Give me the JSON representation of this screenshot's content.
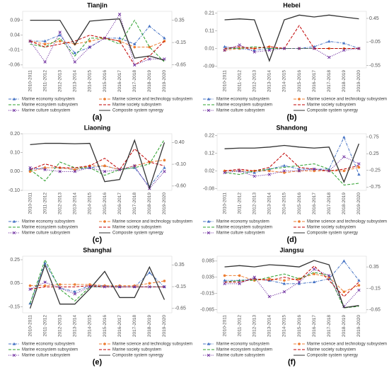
{
  "chart_data": [
    {
      "type": "line",
      "title": "Tianjin",
      "label": "(a)",
      "categories": [
        "2010-2011",
        "2011-2012",
        "2012-2013",
        "2013-2014",
        "2014-2015",
        "2015-2016",
        "2016-2017",
        "2017-2018",
        "2018-2019",
        "2019-2020"
      ],
      "ylim": [
        -0.07,
        0.12
      ],
      "yticks": [
        -0.06,
        -0.01,
        0.04,
        0.09
      ],
      "y2lim": [
        -0.72,
        0.55
      ],
      "y2ticks": [
        -0.65,
        -0.15,
        0.35
      ],
      "series": [
        {
          "name": "Marine economy subsystem",
          "color": "#4472c4",
          "dash": "dashdot",
          "marker": "triangle",
          "values": [
            0.02,
            0.02,
            0.04,
            -0.02,
            0.0,
            0.03,
            0.03,
            0.01,
            0.07,
            0.03
          ]
        },
        {
          "name": "Marine science and technology subsystem",
          "color": "#ed7d31",
          "dash": "dashed",
          "marker": "circle",
          "values": [
            0.02,
            0.01,
            0.02,
            0.01,
            0.02,
            0.03,
            0.02,
            0.0,
            0.0,
            0.02
          ]
        },
        {
          "name": "Marine ecosystem subsystem",
          "color": "#2ca02c",
          "dash": "dashed",
          "values": [
            0.01,
            0.0,
            0.03,
            -0.03,
            0.03,
            0.03,
            0.01,
            0.09,
            0.0,
            -0.05
          ]
        },
        {
          "name": "Marine society subsystem",
          "color": "#c00000",
          "dash": "dashed",
          "values": [
            0.02,
            0.0,
            0.01,
            0.02,
            0.04,
            0.03,
            0.02,
            -0.06,
            -0.03,
            0.02
          ]
        },
        {
          "name": "Marine culture subsystem",
          "color": "#7030a0",
          "dash": "dotted",
          "marker": "x",
          "values": [
            0.02,
            -0.05,
            0.05,
            -0.05,
            0.0,
            0.03,
            0.11,
            -0.06,
            -0.04,
            -0.04
          ]
        },
        {
          "name": "Composite system synergy",
          "color": "#333333",
          "dash": "solid",
          "axis": "y2",
          "values": [
            0.35,
            0.35,
            0.35,
            -0.2,
            0.33,
            0.36,
            0.38,
            -0.5,
            -0.45,
            -0.55
          ]
        }
      ]
    },
    {
      "type": "line",
      "title": "Hebei",
      "label": "(b)",
      "categories": [
        "2010-2011",
        "2011-2012",
        "2012-2013",
        "2013-2014",
        "2014-2015",
        "2015-2016",
        "2016-2017",
        "2017-2018",
        "2018-2019",
        "2019-2020"
      ],
      "ylim": [
        -0.1,
        0.22
      ],
      "yticks": [
        -0.09,
        0.01,
        0.11,
        0.21
      ],
      "y2lim": [
        -0.6,
        0.6
      ],
      "y2ticks": [
        -0.55,
        -0.05,
        0.45
      ],
      "series": [
        {
          "name": "Marine economy subsystem",
          "color": "#4472c4",
          "dash": "dashdot",
          "marker": "triangle",
          "values": [
            0.02,
            0.01,
            0.0,
            0.01,
            0.01,
            0.01,
            0.02,
            0.05,
            0.04,
            0.01
          ]
        },
        {
          "name": "Marine science and technology subsystem",
          "color": "#ed7d31",
          "dash": "dashed",
          "marker": "circle",
          "values": [
            0.0,
            0.01,
            0.01,
            0.02,
            0.01,
            0.01,
            0.01,
            0.01,
            0.01,
            0.01
          ]
        },
        {
          "name": "Marine ecosystem subsystem",
          "color": "#2ca02c",
          "dash": "dashed",
          "values": [
            0.01,
            0.01,
            0.02,
            0.01,
            0.01,
            0.01,
            0.01,
            0.01,
            0.01,
            0.01
          ]
        },
        {
          "name": "Marine society subsystem",
          "color": "#c00000",
          "dash": "dashed",
          "values": [
            0.01,
            0.02,
            0.01,
            0.02,
            0.01,
            0.14,
            0.01,
            0.01,
            0.01,
            0.01
          ]
        },
        {
          "name": "Marine culture subsystem",
          "color": "#7030a0",
          "dash": "dotted",
          "marker": "x",
          "values": [
            0.0,
            0.03,
            -0.01,
            0.0,
            0.01,
            0.01,
            0.01,
            -0.04,
            0.0,
            0.01
          ]
        },
        {
          "name": "Composite system synergy",
          "color": "#333333",
          "dash": "solid",
          "axis": "y2",
          "values": [
            0.42,
            0.44,
            0.42,
            -0.45,
            0.42,
            0.52,
            0.48,
            0.52,
            0.48,
            0.44
          ]
        }
      ]
    },
    {
      "type": "line",
      "title": "Liaoning",
      "label": "(c)",
      "categories": [
        "2010-2011",
        "2011-2012",
        "2012-2013",
        "2013-2014",
        "2014-2015",
        "2015-2016",
        "2016-2017",
        "2017-2018",
        "2018-2019",
        "2019-2020"
      ],
      "ylim": [
        -0.1,
        0.2
      ],
      "yticks": [
        {
          "value": -0.1,
          "label": "-0.10"
        },
        {
          "value": 0,
          "label": "0.00"
        },
        {
          "value": 0.1,
          "label": "0.10"
        },
        {
          "value": 0.2,
          "label": "0.20"
        }
      ],
      "y2lim": [
        -0.7,
        0.6
      ],
      "y2ticks": [
        {
          "value": -0.6,
          "label": "-0.60"
        },
        {
          "value": -0.1,
          "label": "-0.10"
        },
        {
          "value": 0.4,
          "label": "0.40"
        }
      ],
      "series": [
        {
          "name": "Marine economy subsystem",
          "color": "#4472c4",
          "dash": "dashdot",
          "marker": "triangle",
          "values": [
            0.01,
            0.02,
            0.02,
            0.01,
            0.02,
            0.03,
            0.01,
            0.02,
            -0.08,
            0.02
          ]
        },
        {
          "name": "Marine science and technology subsystem",
          "color": "#ed7d31",
          "dash": "dashed",
          "marker": "circle",
          "values": [
            0.0,
            0.02,
            0.02,
            0.01,
            0.03,
            0.03,
            0.01,
            0.03,
            0.05,
            0.06
          ]
        },
        {
          "name": "Marine ecosystem subsystem",
          "color": "#2ca02c",
          "dash": "dashed",
          "values": [
            0.01,
            -0.05,
            0.05,
            0.02,
            0.02,
            -0.02,
            0.01,
            0.02,
            0.04,
            0.17
          ]
        },
        {
          "name": "Marine society subsystem",
          "color": "#c00000",
          "dash": "dashed",
          "values": [
            0.01,
            0.04,
            0.02,
            0.02,
            0.03,
            0.07,
            0.01,
            0.12,
            0.05,
            0.03
          ]
        },
        {
          "name": "Marine culture subsystem",
          "color": "#7030a0",
          "dash": "dotted",
          "marker": "x",
          "values": [
            0.02,
            0.01,
            0.0,
            0.0,
            0.02,
            0.0,
            0.01,
            0.03,
            -0.09,
            0.0
          ]
        },
        {
          "name": "Composite system synergy",
          "color": "#333333",
          "dash": "solid",
          "axis": "y2",
          "values": [
            0.35,
            0.38,
            0.38,
            0.37,
            0.38,
            -0.5,
            -0.45,
            0.45,
            -0.65,
            0.4
          ]
        }
      ]
    },
    {
      "type": "line",
      "title": "Shandong",
      "label": "(d)",
      "categories": [
        "2010-2011",
        "2011-2012",
        "2012-2013",
        "2013-2014",
        "2014-2015",
        "2015-2016",
        "2016-2017",
        "2017-2018",
        "2018-2019",
        "2019-2020"
      ],
      "ylim": [
        -0.09,
        0.23
      ],
      "yticks": [
        -0.08,
        0.02,
        0.12,
        0.22
      ],
      "y2lim": [
        -0.85,
        0.85
      ],
      "y2ticks": [
        -0.75,
        -0.25,
        0.25,
        0.75
      ],
      "series": [
        {
          "name": "Marine economy subsystem",
          "color": "#4472c4",
          "dash": "dashdot",
          "marker": "triangle",
          "values": [
            0.02,
            0.02,
            0.01,
            0.03,
            0.05,
            0.03,
            0.03,
            0.03,
            0.21,
            0.0
          ]
        },
        {
          "name": "Marine science and technology subsystem",
          "color": "#ed7d31",
          "dash": "dashed",
          "marker": "circle",
          "values": [
            0.02,
            0.02,
            0.02,
            0.02,
            0.01,
            0.02,
            0.02,
            0.02,
            0.02,
            0.04
          ]
        },
        {
          "name": "Marine ecosystem subsystem",
          "color": "#2ca02c",
          "dash": "dashed",
          "values": [
            0.01,
            0.0,
            0.02,
            0.03,
            0.04,
            0.05,
            0.06,
            0.03,
            -0.06,
            -0.05
          ]
        },
        {
          "name": "Marine society subsystem",
          "color": "#c00000",
          "dash": "dashed",
          "values": [
            0.02,
            0.03,
            0.02,
            0.04,
            0.12,
            0.04,
            0.03,
            0.02,
            0.03,
            0.05
          ]
        },
        {
          "name": "Marine culture subsystem",
          "color": "#7030a0",
          "dash": "dotted",
          "marker": "x",
          "values": [
            0.01,
            0.02,
            -0.01,
            0.0,
            0.02,
            0.02,
            0.03,
            0.02,
            0.1,
            0.06
          ]
        },
        {
          "name": "Composite system synergy",
          "color": "#333333",
          "dash": "solid",
          "axis": "y2",
          "values": [
            0.4,
            0.42,
            0.42,
            0.45,
            0.5,
            0.45,
            0.42,
            0.45,
            -0.6,
            0.55
          ]
        }
      ]
    },
    {
      "type": "line",
      "title": "Shanghai",
      "label": "(e)",
      "categories": [
        "2010-2011",
        "2011-2012",
        "2012-2013",
        "2013-2014",
        "2014-2015",
        "2015-2016",
        "2016-2017",
        "2017-2018",
        "2018-2019",
        "2019-2020"
      ],
      "ylim": [
        -0.2,
        0.28
      ],
      "yticks": [
        -0.15,
        0.05,
        0.25
      ],
      "y2lim": [
        -0.75,
        0.55
      ],
      "y2ticks": [
        -0.65,
        -0.15,
        0.35
      ],
      "series": [
        {
          "name": "Marine economy subsystem",
          "color": "#4472c4",
          "dash": "dashdot",
          "marker": "triangle",
          "values": [
            -0.12,
            0.22,
            0.01,
            -0.02,
            0.03,
            0.03,
            0.02,
            0.02,
            0.14,
            0.02
          ]
        },
        {
          "name": "Marine science and technology subsystem",
          "color": "#ed7d31",
          "dash": "dashed",
          "marker": "circle",
          "values": [
            0.03,
            0.03,
            0.04,
            0.04,
            0.04,
            0.03,
            0.03,
            0.03,
            0.05,
            0.07
          ]
        },
        {
          "name": "Marine ecosystem subsystem",
          "color": "#2ca02c",
          "dash": "dashed",
          "values": [
            -0.12,
            0.25,
            0.0,
            -0.1,
            0.02,
            0.02,
            0.02,
            0.02,
            0.02,
            0.02
          ]
        },
        {
          "name": "Marine society subsystem",
          "color": "#c00000",
          "dash": "dashed",
          "values": [
            0.0,
            0.02,
            0.02,
            0.02,
            0.03,
            0.02,
            0.02,
            0.02,
            0.02,
            0.02
          ]
        },
        {
          "name": "Marine culture subsystem",
          "color": "#7030a0",
          "dash": "dotted",
          "marker": "x",
          "values": [
            0.0,
            0.06,
            0.01,
            -0.04,
            0.02,
            0.02,
            0.02,
            0.02,
            0.02,
            0.02
          ]
        },
        {
          "name": "Composite system synergy",
          "color": "#333333",
          "dash": "solid",
          "axis": "y2",
          "values": [
            -0.65,
            0.35,
            -0.55,
            -0.55,
            -0.2,
            0.2,
            -0.4,
            -0.4,
            0.3,
            -0.45
          ]
        }
      ]
    },
    {
      "type": "line",
      "title": "Jiangsu",
      "label": "(f)",
      "categories": [
        "2010-2011",
        "2011-2012",
        "2012-2013",
        "2013-2014",
        "2014-2015",
        "2015-2016",
        "2016-2017",
        "2017-2018",
        "2018-2019",
        "2019-2020"
      ],
      "ylim": [
        -0.075,
        0.1
      ],
      "yticks": [
        -0.065,
        -0.015,
        0.035,
        0.085
      ],
      "y2lim": [
        -0.72,
        0.6
      ],
      "y2ticks": [
        -0.65,
        -0.15,
        0.35
      ],
      "series": [
        {
          "name": "Marine economy subsystem",
          "color": "#4472c4",
          "dash": "dashdot",
          "marker": "triangle",
          "values": [
            0.025,
            0.025,
            0.03,
            0.025,
            0.015,
            0.015,
            0.02,
            0.03,
            0.085,
            0.025
          ]
        },
        {
          "name": "Marine science and technology subsystem",
          "color": "#ed7d31",
          "dash": "dashed",
          "marker": "circle",
          "values": [
            0.04,
            0.04,
            0.025,
            0.03,
            0.025,
            0.03,
            0.045,
            0.035,
            -0.01,
            0.01
          ]
        },
        {
          "name": "Marine ecosystem subsystem",
          "color": "#2ca02c",
          "dash": "dashed",
          "values": [
            0.02,
            0.025,
            0.025,
            0.035,
            0.045,
            0.03,
            0.05,
            0.04,
            -0.06,
            -0.055
          ]
        },
        {
          "name": "Marine society subsystem",
          "color": "#c00000",
          "dash": "dashed",
          "values": [
            0.02,
            0.02,
            0.03,
            0.025,
            0.035,
            0.025,
            0.07,
            0.025,
            -0.025,
            0.02
          ]
        },
        {
          "name": "Marine culture subsystem",
          "color": "#7030a0",
          "dash": "dotted",
          "marker": "x",
          "values": [
            0.015,
            0.015,
            0.035,
            -0.025,
            -0.01,
            0.02,
            0.06,
            0.04,
            -0.055,
            -0.005
          ]
        },
        {
          "name": "Composite system synergy",
          "color": "#333333",
          "dash": "solid",
          "axis": "y2",
          "values": [
            0.35,
            0.38,
            0.35,
            0.4,
            0.38,
            0.35,
            0.5,
            0.4,
            -0.6,
            -0.55
          ]
        }
      ]
    }
  ]
}
